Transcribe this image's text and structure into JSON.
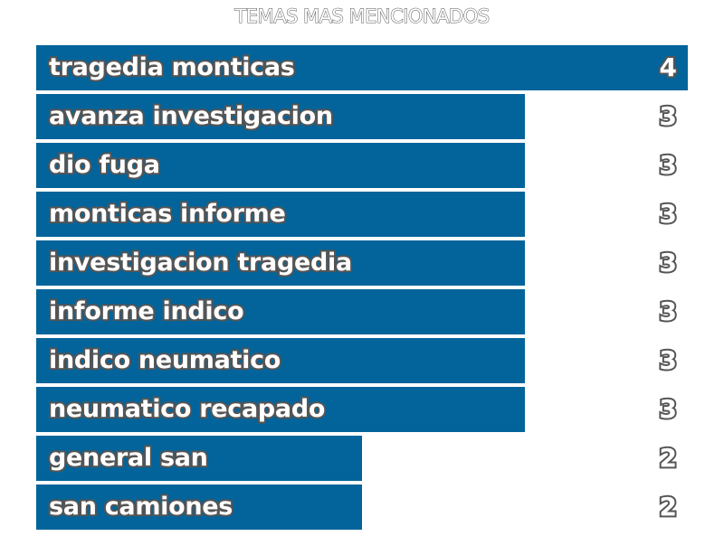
{
  "chart_data": {
    "type": "bar",
    "orientation": "horizontal",
    "title": "TEMAS MAS MENCIONADOS",
    "categories": [
      "tragedia monticas",
      "avanza investigacion",
      "dio fuga",
      "monticas informe",
      "investigacion tragedia",
      "informe indico",
      "indico neumatico",
      "neumatico recapado",
      "general san",
      "san camiones"
    ],
    "values": [
      4,
      3,
      3,
      3,
      3,
      3,
      3,
      3,
      2,
      2
    ],
    "xlim": [
      0,
      4
    ],
    "grid": false,
    "bar_color": "#02649b"
  }
}
